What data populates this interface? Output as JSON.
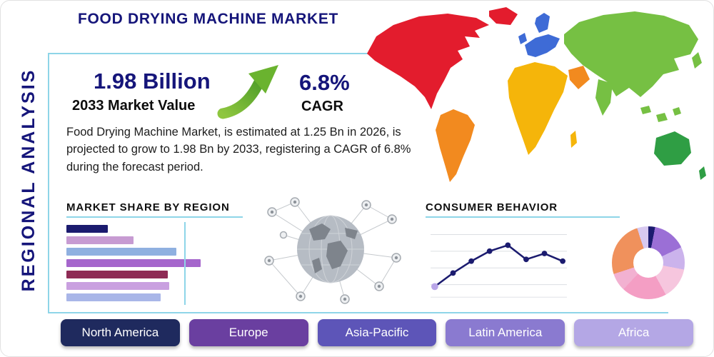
{
  "header": {
    "title": "FOOD DRYING MACHINE MARKET",
    "side_label": "REGIONAL ANALYSIS"
  },
  "stats": {
    "market_value": "1.98 Billion",
    "market_value_label": "2033 Market Value",
    "cagr_value": "6.8%",
    "cagr_label": "CAGR",
    "description": "Food Drying Machine Market, is estimated at 1.25 Bn in 2026, is projected to grow to 1.98 Bn by 2033, registering a CAGR of 6.8% during the forecast period."
  },
  "sections": {
    "market_share_title": "MARKET SHARE BY REGION",
    "consumer_behavior_title": "CONSUMER BEHAVIOR"
  },
  "icons": {
    "growth_arrow": "curved-up-right-green-arrow",
    "globe": "global-network-globe"
  },
  "chart_data": [
    {
      "id": "market-share-bars",
      "type": "bar",
      "orientation": "horizontal",
      "title": "MARKET SHARE BY REGION",
      "values": [
        29,
        47,
        77,
        94,
        71,
        72,
        66
      ],
      "colors": [
        "#1b1b6f",
        "#c79bd2",
        "#8fb0e0",
        "#a566cc",
        "#8e2b55",
        "#c9a0e0",
        "#a9b6e8"
      ],
      "xlim": [
        0,
        100
      ],
      "grid": false,
      "note": "no axis labels shown; values estimated as % of chart width"
    },
    {
      "id": "consumer-behavior-line",
      "type": "line",
      "title": "CONSUMER BEHAVIOR",
      "x": [
        1,
        2,
        3,
        4,
        5,
        6,
        7,
        8
      ],
      "values": [
        12,
        35,
        55,
        72,
        82,
        58,
        68,
        55
      ],
      "ylim": [
        0,
        100
      ],
      "color": "#1b1b6f",
      "first_marker_color": "#b9a6e8",
      "grid": true,
      "note": "no axis labels shown; values estimated 0-100"
    },
    {
      "id": "region-donut",
      "type": "pie",
      "donut": true,
      "slices": [
        {
          "color": "#1b1b6f",
          "value": 3
        },
        {
          "color": "#9b6fd6",
          "value": 15
        },
        {
          "color": "#cbb3ec",
          "value": 10
        },
        {
          "color": "#f6c6de",
          "value": 14
        },
        {
          "color": "#f49ec4",
          "value": 20
        },
        {
          "color": "#f2b1d1",
          "value": 8
        },
        {
          "color": "#f0915c",
          "value": 25
        },
        {
          "color": "#d8c9f0",
          "value": 5
        }
      ],
      "note": "no slice labels shown; shares estimated"
    }
  ],
  "map": {
    "regions": [
      {
        "name": "north-america",
        "color": "#e31c2d"
      },
      {
        "name": "greenland",
        "color": "#e31c2d"
      },
      {
        "name": "south-america",
        "color": "#f28a1f"
      },
      {
        "name": "europe",
        "color": "#3e6bd6"
      },
      {
        "name": "africa",
        "color": "#f5b50a"
      },
      {
        "name": "middle-east",
        "color": "#f28a1f"
      },
      {
        "name": "asia",
        "color": "#76c043"
      },
      {
        "name": "australia",
        "color": "#2f9e44"
      }
    ]
  },
  "region_buttons": [
    {
      "label": "North America",
      "color": "#1f2a5e"
    },
    {
      "label": "Europe",
      "color": "#6a3fa0"
    },
    {
      "label": "Asia-Pacific",
      "color": "#5d55b8"
    },
    {
      "label": "Latin America",
      "color": "#8a7ad0"
    },
    {
      "label": "Africa",
      "color": "#b4a7e5"
    }
  ],
  "theme": {
    "navy": "#15157a",
    "accent_line": "#8ed5e8",
    "arrow_green": "#7ac143"
  }
}
